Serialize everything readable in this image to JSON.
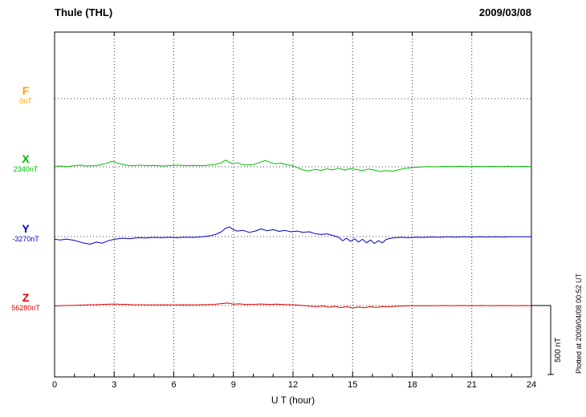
{
  "header": {
    "title": "Thule (THL)",
    "date": "2009/03/08"
  },
  "chart_data": {
    "type": "line",
    "title": "Thule (THL)",
    "date": "2009/03/08",
    "xlabel": "U T (hour)",
    "y_units": "nT",
    "x_range": [
      0,
      24
    ],
    "x_ticks": [
      0,
      3,
      6,
      9,
      12,
      15,
      18,
      21,
      24
    ],
    "x_minor_tick_step": 1,
    "grid": "dotted vertical lines every 3 hours; dotted horizontal baseline per channel",
    "scale_bar": {
      "label": "500 nT",
      "value_nT": 500
    },
    "plotted_at": "Plotted at 2009/04/08 00:52 UT",
    "points_format": "[hour, deviation_nT_from_baseline]",
    "channels": [
      {
        "name": "F",
        "baseline_label": "0nT",
        "baseline_nT": 0,
        "color": "#FFA500",
        "points": []
      },
      {
        "name": "X",
        "baseline_label": "2340nT",
        "baseline_nT": 2340,
        "color": "#00BE00",
        "points": [
          [
            0,
            3
          ],
          [
            0.3,
            6
          ],
          [
            0.6,
            2
          ],
          [
            1,
            8
          ],
          [
            1.3,
            12
          ],
          [
            1.6,
            6
          ],
          [
            2,
            8
          ],
          [
            2.3,
            14
          ],
          [
            2.6,
            25
          ],
          [
            2.9,
            40
          ],
          [
            3.1,
            30
          ],
          [
            3.4,
            18
          ],
          [
            3.7,
            10
          ],
          [
            4,
            8
          ],
          [
            4.3,
            12
          ],
          [
            4.6,
            8
          ],
          [
            5,
            10
          ],
          [
            5.4,
            6
          ],
          [
            5.8,
            9
          ],
          [
            6.2,
            12
          ],
          [
            6.6,
            8
          ],
          [
            7,
            10
          ],
          [
            7.4,
            8
          ],
          [
            7.8,
            12
          ],
          [
            8.1,
            18
          ],
          [
            8.4,
            30
          ],
          [
            8.6,
            48
          ],
          [
            8.8,
            32
          ],
          [
            9,
            22
          ],
          [
            9.2,
            30
          ],
          [
            9.4,
            18
          ],
          [
            9.7,
            12
          ],
          [
            10,
            16
          ],
          [
            10.3,
            30
          ],
          [
            10.6,
            46
          ],
          [
            10.9,
            30
          ],
          [
            11.1,
            22
          ],
          [
            11.4,
            26
          ],
          [
            11.7,
            14
          ],
          [
            12,
            8
          ],
          [
            12.2,
            -5
          ],
          [
            12.5,
            -22
          ],
          [
            12.8,
            -30
          ],
          [
            13.1,
            -18
          ],
          [
            13.4,
            -26
          ],
          [
            13.7,
            -15
          ],
          [
            14,
            -22
          ],
          [
            14.3,
            -10
          ],
          [
            14.6,
            -24
          ],
          [
            14.9,
            -12
          ],
          [
            15.2,
            -20
          ],
          [
            15.5,
            -28
          ],
          [
            15.8,
            -16
          ],
          [
            16.1,
            -24
          ],
          [
            16.4,
            -34
          ],
          [
            16.7,
            -28
          ],
          [
            17,
            -32
          ],
          [
            17.3,
            -22
          ],
          [
            17.6,
            -12
          ],
          [
            18,
            -6
          ],
          [
            18.4,
            -2
          ],
          [
            18.8,
            2
          ],
          [
            19.2,
            0
          ],
          [
            19.6,
            3
          ],
          [
            20,
            1
          ],
          [
            20.4,
            4
          ],
          [
            20.8,
            2
          ],
          [
            21.2,
            3
          ],
          [
            21.6,
            1
          ],
          [
            22,
            3
          ],
          [
            22.4,
            2
          ],
          [
            22.8,
            4
          ],
          [
            23.2,
            2
          ],
          [
            23.6,
            3
          ],
          [
            24,
            2
          ]
        ]
      },
      {
        "name": "Y",
        "baseline_label": "-3270nT",
        "baseline_nT": -3270,
        "color": "#0000CC",
        "points": [
          [
            0,
            -20
          ],
          [
            0.3,
            -25
          ],
          [
            0.6,
            -18
          ],
          [
            1,
            -28
          ],
          [
            1.4,
            -45
          ],
          [
            1.8,
            -55
          ],
          [
            2.1,
            -40
          ],
          [
            2.4,
            -48
          ],
          [
            2.7,
            -30
          ],
          [
            3,
            -20
          ],
          [
            3.4,
            -12
          ],
          [
            3.8,
            -15
          ],
          [
            4.2,
            -8
          ],
          [
            4.6,
            -10
          ],
          [
            5,
            -6
          ],
          [
            5.4,
            -8
          ],
          [
            5.8,
            -5
          ],
          [
            6.2,
            -8
          ],
          [
            6.6,
            -4
          ],
          [
            7,
            -6
          ],
          [
            7.4,
            -2
          ],
          [
            7.8,
            5
          ],
          [
            8.1,
            15
          ],
          [
            8.4,
            35
          ],
          [
            8.6,
            60
          ],
          [
            8.8,
            70
          ],
          [
            9,
            50
          ],
          [
            9.2,
            40
          ],
          [
            9.5,
            45
          ],
          [
            9.8,
            30
          ],
          [
            10.1,
            40
          ],
          [
            10.4,
            55
          ],
          [
            10.7,
            42
          ],
          [
            11,
            50
          ],
          [
            11.3,
            38
          ],
          [
            11.6,
            45
          ],
          [
            11.9,
            35
          ],
          [
            12.2,
            40
          ],
          [
            12.5,
            30
          ],
          [
            12.8,
            35
          ],
          [
            13.1,
            22
          ],
          [
            13.4,
            15
          ],
          [
            13.7,
            20
          ],
          [
            14,
            8
          ],
          [
            14.3,
            -5
          ],
          [
            14.5,
            -30
          ],
          [
            14.7,
            -12
          ],
          [
            14.9,
            -35
          ],
          [
            15.1,
            -15
          ],
          [
            15.3,
            -40
          ],
          [
            15.5,
            -20
          ],
          [
            15.7,
            -45
          ],
          [
            15.9,
            -25
          ],
          [
            16.1,
            -50
          ],
          [
            16.3,
            -30
          ],
          [
            16.5,
            -45
          ],
          [
            16.7,
            -20
          ],
          [
            17,
            -10
          ],
          [
            17.4,
            -5
          ],
          [
            17.8,
            -8
          ],
          [
            18.2,
            -4
          ],
          [
            18.6,
            -6
          ],
          [
            19,
            -3
          ],
          [
            19.4,
            -5
          ],
          [
            19.8,
            -2
          ],
          [
            20.2,
            -4
          ],
          [
            20.6,
            -2
          ],
          [
            21,
            -3
          ],
          [
            21.4,
            -1
          ],
          [
            21.8,
            -3
          ],
          [
            22.2,
            -2
          ],
          [
            22.6,
            -3
          ],
          [
            23,
            -1
          ],
          [
            23.4,
            -2
          ],
          [
            23.7,
            -1
          ],
          [
            24,
            -2
          ]
        ]
      },
      {
        "name": "Z",
        "baseline_label": "56280nT",
        "baseline_nT": 56280,
        "color": "#DD0000",
        "points": [
          [
            0,
            -3
          ],
          [
            0.5,
            0
          ],
          [
            1,
            2
          ],
          [
            1.5,
            4
          ],
          [
            2,
            6
          ],
          [
            2.5,
            9
          ],
          [
            3,
            11
          ],
          [
            3.5,
            8
          ],
          [
            4,
            6
          ],
          [
            4.5,
            5
          ],
          [
            5,
            4
          ],
          [
            5.5,
            5
          ],
          [
            6,
            4
          ],
          [
            6.5,
            5
          ],
          [
            7,
            4
          ],
          [
            7.5,
            6
          ],
          [
            8,
            8
          ],
          [
            8.4,
            14
          ],
          [
            8.7,
            18
          ],
          [
            9,
            10
          ],
          [
            9.3,
            12
          ],
          [
            9.6,
            8
          ],
          [
            10,
            9
          ],
          [
            10.4,
            11
          ],
          [
            10.8,
            8
          ],
          [
            11.2,
            10
          ],
          [
            11.6,
            7
          ],
          [
            12,
            6
          ],
          [
            12.4,
            2
          ],
          [
            12.8,
            -4
          ],
          [
            13.2,
            -8
          ],
          [
            13.5,
            -3
          ],
          [
            13.8,
            -12
          ],
          [
            14.1,
            -6
          ],
          [
            14.4,
            -15
          ],
          [
            14.7,
            -8
          ],
          [
            15,
            -18
          ],
          [
            15.3,
            -10
          ],
          [
            15.6,
            -16
          ],
          [
            15.9,
            -8
          ],
          [
            16.2,
            -14
          ],
          [
            16.5,
            -7
          ],
          [
            16.8,
            -10
          ],
          [
            17.2,
            -5
          ],
          [
            17.6,
            -3
          ],
          [
            18,
            -2
          ],
          [
            18.5,
            -1
          ],
          [
            19,
            -2
          ],
          [
            19.5,
            0
          ],
          [
            20,
            -1
          ],
          [
            20.5,
            0
          ],
          [
            21,
            -1
          ],
          [
            21.5,
            0
          ],
          [
            22,
            -1
          ],
          [
            22.5,
            0
          ],
          [
            23,
            -1
          ],
          [
            23.5,
            0
          ],
          [
            24,
            -1
          ]
        ]
      }
    ]
  }
}
